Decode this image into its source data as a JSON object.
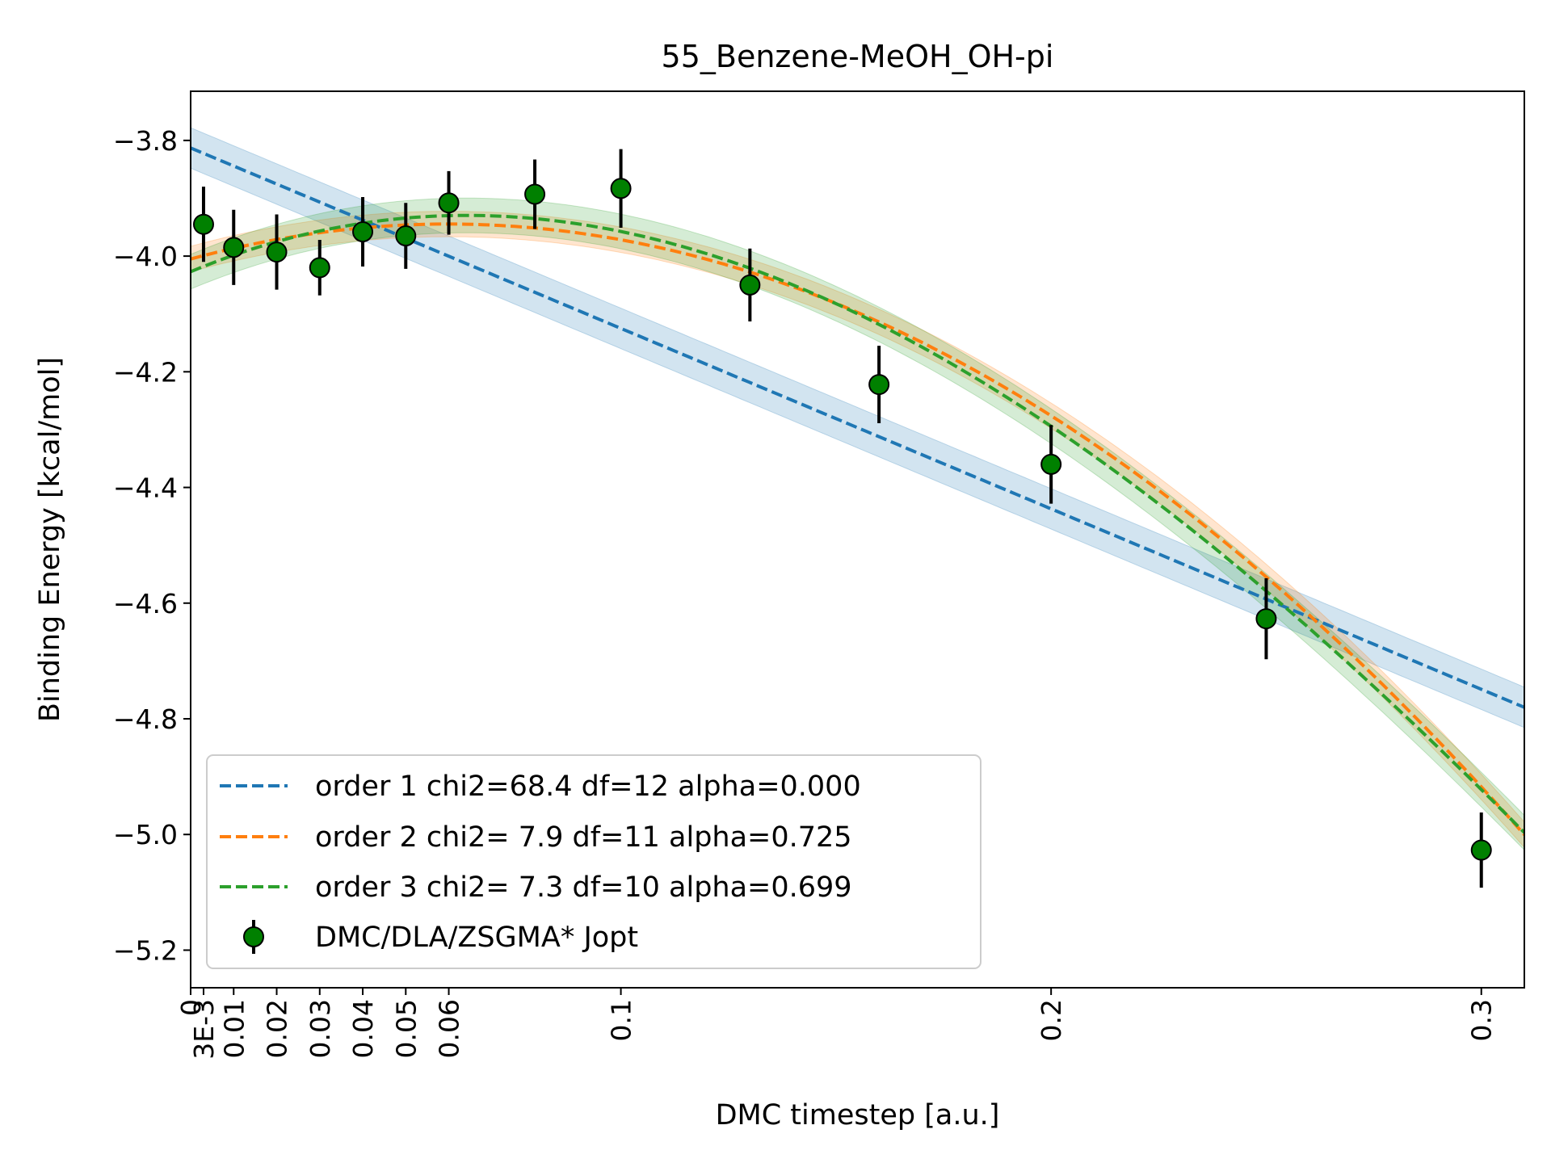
{
  "chart_data": {
    "type": "scatter",
    "title": "55_Benzene-MeOH_OH-pi",
    "xlabel": "DMC timestep [a.u.]",
    "ylabel": "Binding Energy [kcal/mol]",
    "xlim": [
      0,
      0.31
    ],
    "ylim": [
      -5.265,
      -3.715
    ],
    "grid": false,
    "legend_position": "lower-left",
    "x_ticks": [
      {
        "value": 0,
        "label": "0"
      },
      {
        "value": 0.003,
        "label": "3E-3"
      },
      {
        "value": 0.01,
        "label": "0.01"
      },
      {
        "value": 0.02,
        "label": "0.02"
      },
      {
        "value": 0.03,
        "label": "0.03"
      },
      {
        "value": 0.04,
        "label": "0.04"
      },
      {
        "value": 0.05,
        "label": "0.05"
      },
      {
        "value": 0.06,
        "label": "0.06"
      },
      {
        "value": 0.1,
        "label": "0.1"
      },
      {
        "value": 0.2,
        "label": "0.2"
      },
      {
        "value": 0.3,
        "label": "0.3"
      }
    ],
    "y_ticks": [
      {
        "value": -3.8,
        "label": "−3.8"
      },
      {
        "value": -4.0,
        "label": "−4.0"
      },
      {
        "value": -4.2,
        "label": "−4.2"
      },
      {
        "value": -4.4,
        "label": "−4.4"
      },
      {
        "value": -4.6,
        "label": "−4.6"
      },
      {
        "value": -4.8,
        "label": "−4.8"
      },
      {
        "value": -5.0,
        "label": "−5.0"
      },
      {
        "value": -5.2,
        "label": "−5.2"
      }
    ],
    "data_series": {
      "name": "DMC/DLA/ZSGMA* Jopt",
      "color": "#008000",
      "points": [
        {
          "x": 0.003,
          "y": -3.945,
          "err": 0.065
        },
        {
          "x": 0.01,
          "y": -3.985,
          "err": 0.065
        },
        {
          "x": 0.02,
          "y": -3.993,
          "err": 0.065
        },
        {
          "x": 0.03,
          "y": -4.02,
          "err": 0.048
        },
        {
          "x": 0.04,
          "y": -3.958,
          "err": 0.06
        },
        {
          "x": 0.05,
          "y": -3.965,
          "err": 0.057
        },
        {
          "x": 0.06,
          "y": -3.908,
          "err": 0.055
        },
        {
          "x": 0.08,
          "y": -3.893,
          "err": 0.06
        },
        {
          "x": 0.1,
          "y": -3.883,
          "err": 0.068
        },
        {
          "x": 0.13,
          "y": -4.05,
          "err": 0.063
        },
        {
          "x": 0.16,
          "y": -4.222,
          "err": 0.067
        },
        {
          "x": 0.2,
          "y": -4.36,
          "err": 0.068
        },
        {
          "x": 0.25,
          "y": -4.627,
          "err": 0.07
        },
        {
          "x": 0.3,
          "y": -5.027,
          "err": 0.065
        }
      ]
    },
    "fit_series": [
      {
        "name": "order 1 chi2=68.4 df=12 alpha=0.000",
        "color": "#1f77b4",
        "coefficients": [
          -3.813,
          -3.12
        ],
        "band": 0.035
      },
      {
        "name": "order 2 chi2= 7.9 df=11 alpha=0.725",
        "color": "#ff7f0e",
        "coefficients": [
          -4.005,
          2.02,
          -16.875
        ],
        "band": 0.022
      },
      {
        "name": "order 3 chi2= 7.3 df=10 alpha=0.699",
        "color": "#2ca02c",
        "coefficients": [
          -4.027,
          3.11,
          -26.06,
          19.15
        ],
        "band": 0.03
      }
    ]
  }
}
